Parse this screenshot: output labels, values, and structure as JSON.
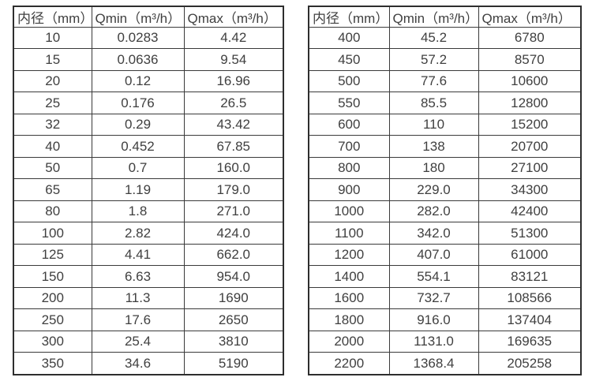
{
  "page": {
    "background_color": "#ffffff",
    "text_color": "#404040",
    "border_color": "#3a3a3a"
  },
  "tables": [
    {
      "name": "flow-table-small-diameters",
      "headers": [
        "内径（mm）",
        "Qmin（m³/h）",
        "Qmax（m³/h）"
      ],
      "rows": [
        [
          "10",
          "0.0283",
          "4.42"
        ],
        [
          "15",
          "0.0636",
          "9.54"
        ],
        [
          "20",
          "0.12",
          "16.96"
        ],
        [
          "25",
          "0.176",
          "26.5"
        ],
        [
          "32",
          "0.29",
          "43.42"
        ],
        [
          "40",
          "0.452",
          "67.85"
        ],
        [
          "50",
          "0.7",
          "160.0"
        ],
        [
          "65",
          "1.19",
          "179.0"
        ],
        [
          "80",
          "1.8",
          "271.0"
        ],
        [
          "100",
          "2.82",
          "424.0"
        ],
        [
          "125",
          "4.41",
          "662.0"
        ],
        [
          "150",
          "6.63",
          "954.0"
        ],
        [
          "200",
          "11.3",
          "1690"
        ],
        [
          "250",
          "17.6",
          "2650"
        ],
        [
          "300",
          "25.4",
          "3810"
        ],
        [
          "350",
          "34.6",
          "5190"
        ]
      ]
    },
    {
      "name": "flow-table-large-diameters",
      "headers": [
        "内径（mm）",
        "Qmin（m³/h）",
        "Qmax（m³/h）"
      ],
      "rows": [
        [
          "400",
          "45.2",
          "6780"
        ],
        [
          "450",
          "57.2",
          "8570"
        ],
        [
          "500",
          "77.6",
          "10600"
        ],
        [
          "550",
          "85.5",
          "12800"
        ],
        [
          "600",
          "110",
          "15200"
        ],
        [
          "700",
          "138",
          "20700"
        ],
        [
          "800",
          "180",
          "27100"
        ],
        [
          "900",
          "229.0",
          "34300"
        ],
        [
          "1000",
          "282.0",
          "42400"
        ],
        [
          "1100",
          "342.0",
          "51300"
        ],
        [
          "1200",
          "407.0",
          "61000"
        ],
        [
          "1400",
          "554.1",
          "83121"
        ],
        [
          "1600",
          "732.7",
          "108566"
        ],
        [
          "1800",
          "916.0",
          "137404"
        ],
        [
          "2000",
          "1131.0",
          "169635"
        ],
        [
          "2200",
          "1368.4",
          "205258"
        ]
      ]
    }
  ]
}
